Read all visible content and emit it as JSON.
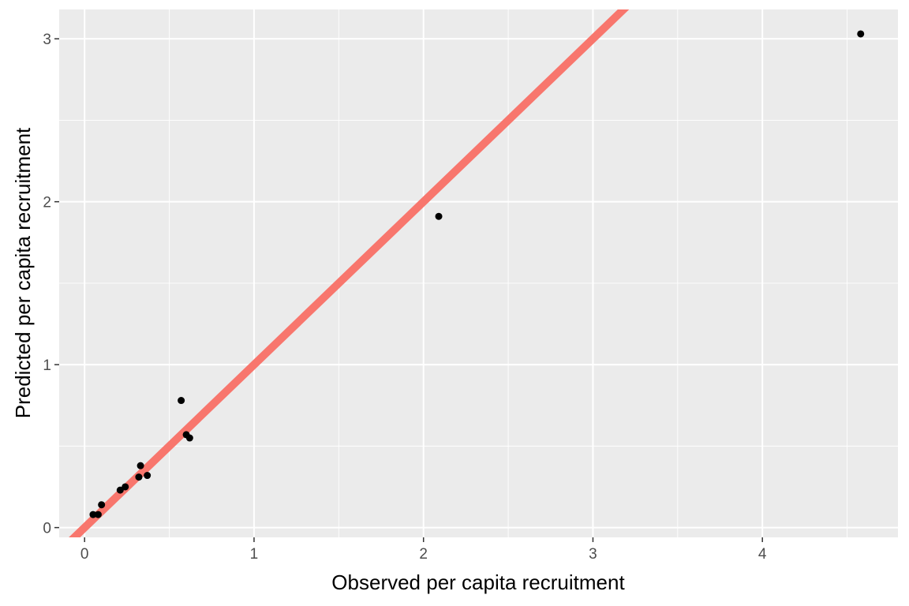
{
  "chart_data": {
    "type": "scatter",
    "title": "",
    "xlabel": "Observed per capita recruitment",
    "ylabel": "Predicted per capita recruitment",
    "xlim": [
      -0.15,
      4.8
    ],
    "ylim": [
      -0.06,
      3.18
    ],
    "x_ticks": [
      {
        "value": 0,
        "label": "0"
      },
      {
        "value": 1,
        "label": "1"
      },
      {
        "value": 2,
        "label": "2"
      },
      {
        "value": 3,
        "label": "3"
      },
      {
        "value": 4,
        "label": "4"
      }
    ],
    "y_ticks": [
      {
        "value": 0,
        "label": "0"
      },
      {
        "value": 1,
        "label": "1"
      },
      {
        "value": 2,
        "label": "2"
      },
      {
        "value": 3,
        "label": "3"
      }
    ],
    "grid": true,
    "reference_line": {
      "intercept": 0,
      "slope": 1,
      "color": "#F8766D"
    },
    "point_color": "#000000",
    "points": [
      {
        "x": 0.05,
        "y": 0.08
      },
      {
        "x": 0.08,
        "y": 0.08
      },
      {
        "x": 0.1,
        "y": 0.14
      },
      {
        "x": 0.21,
        "y": 0.23
      },
      {
        "x": 0.24,
        "y": 0.25
      },
      {
        "x": 0.32,
        "y": 0.31
      },
      {
        "x": 0.33,
        "y": 0.38
      },
      {
        "x": 0.37,
        "y": 0.32
      },
      {
        "x": 0.57,
        "y": 0.78
      },
      {
        "x": 0.6,
        "y": 0.57
      },
      {
        "x": 0.62,
        "y": 0.55
      },
      {
        "x": 2.09,
        "y": 1.91
      },
      {
        "x": 4.58,
        "y": 3.03
      }
    ],
    "colors": {
      "panel_background": "#EBEBEB",
      "grid_major": "#FFFFFF",
      "tick_mark": "#333333"
    }
  }
}
